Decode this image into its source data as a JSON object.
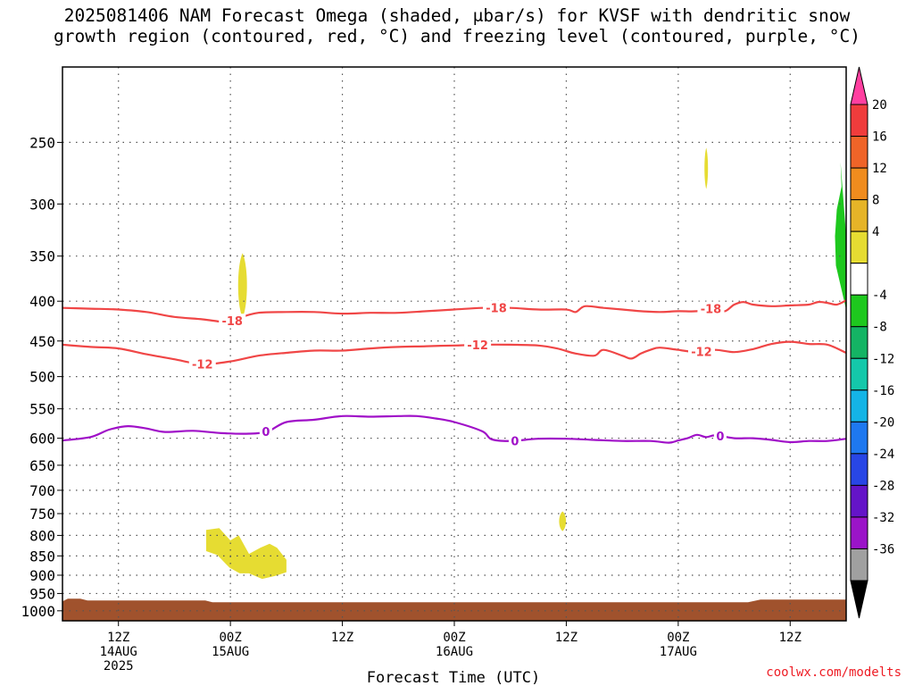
{
  "title_line1": "2025081406 NAM Forecast Omega (shaded, μbar/s) for KVSF with dendritic snow",
  "title_line2": "growth region (contoured, red, °C) and freezing level (contoured, purple, °C)",
  "credit": "coolwx.com/modelts",
  "chart_data": {
    "type": "time-height-contour",
    "xlabel": "Forecast Time (UTC)",
    "x_range_hours": [
      0,
      84
    ],
    "x_ticks": [
      {
        "hour": 6,
        "lines": [
          "12Z",
          "14AUG",
          "2025"
        ]
      },
      {
        "hour": 18,
        "lines": [
          "00Z",
          "15AUG"
        ]
      },
      {
        "hour": 30,
        "lines": [
          "12Z"
        ]
      },
      {
        "hour": 42,
        "lines": [
          "00Z",
          "16AUG"
        ]
      },
      {
        "hour": 54,
        "lines": [
          "12Z"
        ]
      },
      {
        "hour": 66,
        "lines": [
          "00Z",
          "17AUG"
        ]
      },
      {
        "hour": 78,
        "lines": [
          "12Z"
        ]
      }
    ],
    "y_label": "",
    "y_scale": "log-pressure",
    "y_range_hPa": [
      200,
      1030
    ],
    "y_ticks_hPa": [
      250,
      300,
      350,
      400,
      450,
      500,
      550,
      600,
      650,
      700,
      750,
      800,
      850,
      900,
      950,
      1000
    ],
    "grid": true,
    "colorbar": {
      "units": "μbar/s",
      "labels": [
        "20",
        "16",
        "12",
        "8",
        "4",
        "-4",
        "-8",
        "-12",
        "-16",
        "-20",
        "-24",
        "-28",
        "-32",
        "-36"
      ],
      "colors_top_to_bottom": [
        "#ff3fa0",
        "#f03c3c",
        "#f06428",
        "#f08c1e",
        "#e6b428",
        "#e6dc32",
        "#ffffff",
        "#1ec81e",
        "#14b464",
        "#14c8aa",
        "#14b4e6",
        "#1e78f0",
        "#2846e6",
        "#6414c8",
        "#9b14c8",
        "#a0a0a0",
        "#000000"
      ]
    },
    "contours": [
      {
        "name": "-18",
        "color": "#f04646",
        "kind": "dendritic",
        "label_hours": [
          18.2,
          46.5,
          69.5
        ],
        "points": [
          [
            0,
            408
          ],
          [
            3,
            409
          ],
          [
            6,
            410
          ],
          [
            9,
            413
          ],
          [
            12,
            419
          ],
          [
            15,
            422
          ],
          [
            17,
            425
          ],
          [
            18,
            425
          ],
          [
            19,
            420
          ],
          [
            21,
            414
          ],
          [
            24,
            413
          ],
          [
            27,
            413
          ],
          [
            30,
            415
          ],
          [
            33,
            414
          ],
          [
            36,
            414
          ],
          [
            39,
            412
          ],
          [
            42,
            410
          ],
          [
            45,
            408
          ],
          [
            48,
            408
          ],
          [
            51,
            410
          ],
          [
            54,
            410
          ],
          [
            55,
            413
          ],
          [
            56,
            406
          ],
          [
            58,
            408
          ],
          [
            60,
            410
          ],
          [
            62,
            412
          ],
          [
            64,
            413
          ],
          [
            66,
            412
          ],
          [
            68,
            412
          ],
          [
            70,
            408
          ],
          [
            71,
            412
          ],
          [
            72,
            404
          ],
          [
            73,
            401
          ],
          [
            74,
            404
          ],
          [
            76,
            406
          ],
          [
            78,
            405
          ],
          [
            80,
            404
          ],
          [
            81,
            401
          ],
          [
            82,
            402
          ],
          [
            83,
            404
          ],
          [
            84,
            399
          ]
        ]
      },
      {
        "name": "-12",
        "color": "#f04646",
        "kind": "dendritic",
        "label_hours": [
          15.0,
          44.5,
          68.5
        ],
        "points": [
          [
            0,
            455
          ],
          [
            3,
            458
          ],
          [
            6,
            460
          ],
          [
            9,
            468
          ],
          [
            12,
            475
          ],
          [
            15,
            482
          ],
          [
            18,
            478
          ],
          [
            21,
            470
          ],
          [
            24,
            466
          ],
          [
            27,
            463
          ],
          [
            30,
            463
          ],
          [
            33,
            460
          ],
          [
            36,
            458
          ],
          [
            39,
            457
          ],
          [
            42,
            456
          ],
          [
            45,
            455
          ],
          [
            48,
            455
          ],
          [
            51,
            456
          ],
          [
            53,
            460
          ],
          [
            55,
            467
          ],
          [
            57,
            470
          ],
          [
            58,
            462
          ],
          [
            60,
            470
          ],
          [
            61,
            474
          ],
          [
            62,
            467
          ],
          [
            63,
            462
          ],
          [
            64,
            459
          ],
          [
            66,
            462
          ],
          [
            68,
            465
          ],
          [
            70,
            462
          ],
          [
            72,
            465
          ],
          [
            74,
            461
          ],
          [
            76,
            454
          ],
          [
            78,
            451
          ],
          [
            80,
            454
          ],
          [
            82,
            455
          ],
          [
            84,
            466
          ]
        ]
      },
      {
        "name": "0",
        "color": "#a010c8",
        "kind": "freezing-level",
        "label_hours": [
          21.8,
          48.5,
          70.5
        ],
        "points": [
          [
            0,
            604
          ],
          [
            3,
            598
          ],
          [
            5,
            585
          ],
          [
            7,
            579
          ],
          [
            9,
            583
          ],
          [
            11,
            589
          ],
          [
            14,
            587
          ],
          [
            17,
            591
          ],
          [
            20,
            592
          ],
          [
            22,
            588
          ],
          [
            24,
            572
          ],
          [
            27,
            568
          ],
          [
            30,
            562
          ],
          [
            33,
            563
          ],
          [
            36,
            562
          ],
          [
            38,
            562
          ],
          [
            40,
            566
          ],
          [
            42,
            572
          ],
          [
            45,
            588
          ],
          [
            46,
            602
          ],
          [
            48,
            605
          ],
          [
            51,
            601
          ],
          [
            54,
            601
          ],
          [
            57,
            603
          ],
          [
            60,
            605
          ],
          [
            63,
            605
          ],
          [
            65,
            608
          ],
          [
            66,
            604
          ],
          [
            67,
            600
          ],
          [
            68,
            594
          ],
          [
            69,
            598
          ],
          [
            70,
            595
          ],
          [
            72,
            600
          ],
          [
            74,
            600
          ],
          [
            76,
            603
          ],
          [
            78,
            607
          ],
          [
            80,
            605
          ],
          [
            82,
            605
          ],
          [
            84,
            601
          ]
        ]
      }
    ],
    "shaded_regions": [
      {
        "name": "omega 4-8 upper",
        "value_range": "4 to 8",
        "color": "#e6dc32",
        "center_hour": 19.3,
        "p_top": 347,
        "p_bottom": 420,
        "half_width_hours": 0.45
      },
      {
        "name": "omega 4-8 275",
        "value_range": "4 to 8",
        "color": "#e6dc32",
        "center_hour": 69.0,
        "p_top": 254,
        "p_bottom": 287,
        "half_width_hours": 0.18
      },
      {
        "name": "omega 4-8 low-level",
        "value_range": "4 to 8",
        "color": "#e6dc32",
        "hours": [
          15.4,
          16.8,
          18.0,
          18.9,
          20.0,
          21.2,
          22.2,
          23.0,
          24.0,
          24.0,
          22.8,
          21.4,
          20.0,
          19.0,
          17.9,
          16.6,
          15.4
        ],
        "pressures": [
          787,
          783,
          812,
          800,
          845,
          830,
          820,
          830,
          860,
          892,
          902,
          910,
          895,
          895,
          880,
          848,
          838
        ]
      },
      {
        "name": "omega 4-8 760",
        "value_range": "4 to 8",
        "color": "#e6dc32",
        "center_hour": 53.6,
        "p_top": 745,
        "p_bottom": 790,
        "half_width_hours": 0.35
      },
      {
        "name": "omega -4 to -8",
        "value_range": "-4 to -8",
        "color": "#1ec81e",
        "hours": [
          83.4,
          83.5,
          83.0,
          82.8,
          82.9,
          84.0,
          84.0
        ],
        "pressures": [
          265,
          285,
          305,
          330,
          360,
          410,
          330
        ]
      }
    ],
    "terrain": {
      "color": "#a0522d",
      "surface_hPa_approx": 970
    }
  }
}
